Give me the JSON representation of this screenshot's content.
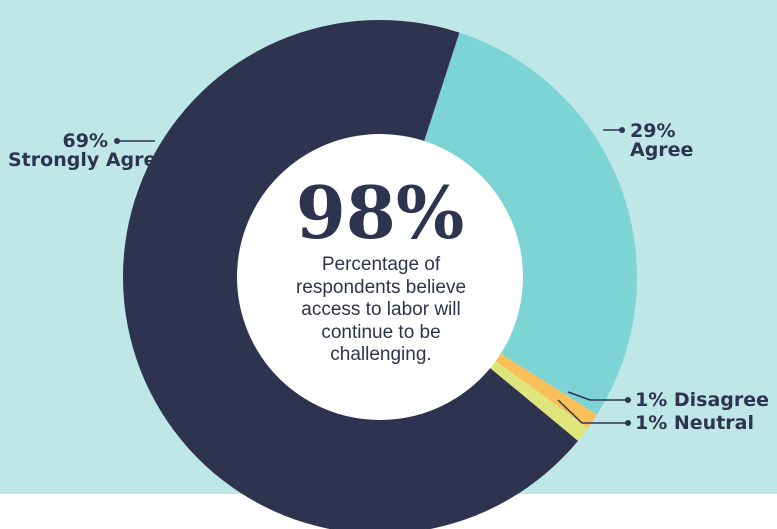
{
  "chart_data": {
    "type": "pie",
    "donut": true,
    "slices": [
      {
        "label_value": "29%",
        "label_text": "Agree",
        "value": 29,
        "color": "#7dd4d4"
      },
      {
        "label_value": "1%",
        "label_text": "Disagree",
        "value": 1,
        "color": "#f9c05a"
      },
      {
        "label_value": "1%",
        "label_text": "Neutral",
        "value": 1,
        "color": "#dfe57a"
      },
      {
        "label_value": "69%",
        "label_text": "Strongly Agree",
        "value": 69,
        "color": "#2e3450"
      }
    ],
    "center_stat": "98%",
    "center_text": "Percentage of respondents believe access to labor will continue to be challenging.",
    "background_color": "#bfe7e8",
    "text_color": "#2e3450"
  }
}
